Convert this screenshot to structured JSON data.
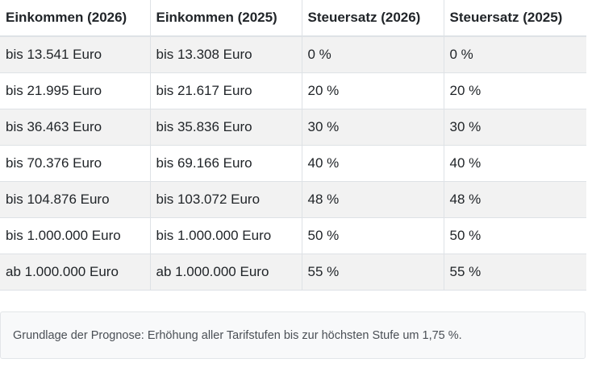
{
  "table": {
    "headers": [
      "Einkommen (2026)",
      "Einkommen (2025)",
      "Steuersatz (2026)",
      "Steuersatz (2025)"
    ],
    "rows": [
      [
        "bis 13.541 Euro",
        "bis 13.308 Euro",
        "0 %",
        "0 %"
      ],
      [
        "bis 21.995 Euro",
        "bis 21.617 Euro",
        "20 %",
        "20 %"
      ],
      [
        "bis 36.463 Euro",
        "bis 35.836 Euro",
        "30 %",
        "30 %"
      ],
      [
        "bis 70.376 Euro",
        "bis 69.166 Euro",
        "40 %",
        "40 %"
      ],
      [
        "bis 104.876 Euro",
        "bis 103.072 Euro",
        "48 %",
        "48 %"
      ],
      [
        "bis 1.000.000 Euro",
        "bis 1.000.000 Euro",
        "50 %",
        "50 %"
      ],
      [
        "ab 1.000.000 Euro",
        "ab 1.000.000 Euro",
        "55 %",
        "55 %"
      ]
    ]
  },
  "note": {
    "text": "Grundlage der Prognose: Erhöhung aller Tarifstufen bis zur höchsten Stufe um 1,75 %."
  },
  "colors": {
    "stripe": "#f2f2f2",
    "border": "#dee2e6",
    "note_background": "#f8f9fa"
  }
}
